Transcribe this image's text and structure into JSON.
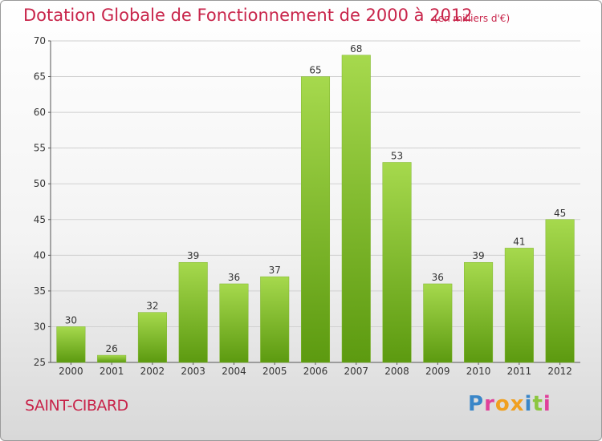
{
  "header": {
    "title": "Dotation Globale de Fonctionnement de 2000 à 2012",
    "subtitle": "(en milliers d'€)"
  },
  "footer": {
    "commune": "SAINT-CIBARD",
    "logo_text": "Proxiti",
    "logo_colors": [
      "#3a86c8",
      "#e0409a",
      "#f0a020",
      "#f0a020",
      "#3a86c8",
      "#8cc63f",
      "#e0409a"
    ]
  },
  "colors": {
    "bar_top": "#a6d94d",
    "bar_bottom": "#5c9a10",
    "accent": "#c8244a"
  },
  "chart_data": {
    "type": "bar",
    "categories": [
      "2000",
      "2001",
      "2002",
      "2003",
      "2004",
      "2005",
      "2006",
      "2007",
      "2008",
      "2009",
      "2010",
      "2011",
      "2012"
    ],
    "values": [
      30,
      26,
      32,
      39,
      36,
      37,
      65,
      68,
      53,
      36,
      39,
      41,
      45
    ],
    "ylim": [
      25,
      70
    ],
    "yticks": [
      25,
      30,
      35,
      40,
      45,
      50,
      55,
      60,
      65,
      70
    ],
    "grid": true,
    "data_labels": true
  }
}
